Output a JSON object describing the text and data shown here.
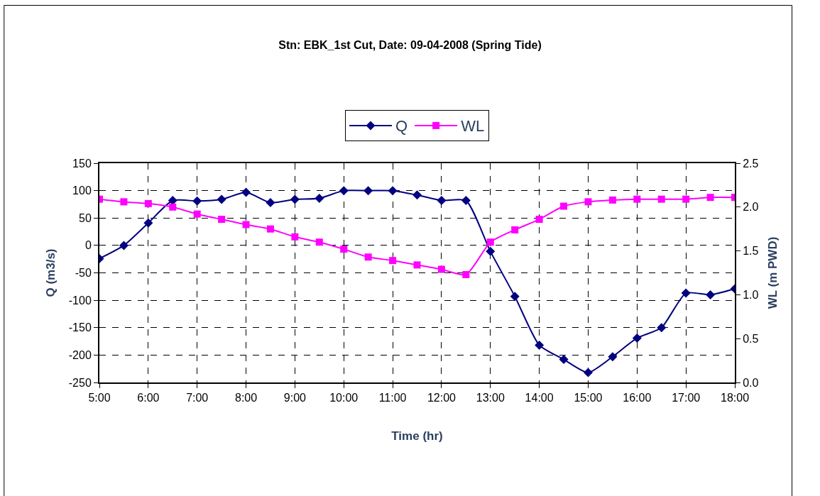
{
  "chart_data": {
    "type": "line",
    "title": "Stn: EBK_1st Cut, Date: 09-04-2008 (Spring Tide)",
    "xlabel": "Time (hr)",
    "ylabel": "Q (m3/s)",
    "y2label": "WL (m PWD)",
    "x": [
      5,
      5.5,
      6,
      6.5,
      7,
      7.5,
      8,
      8.5,
      9,
      9.5,
      10,
      10.5,
      11,
      11.5,
      12,
      12.5,
      13,
      13.5,
      14,
      14.5,
      15,
      15.5,
      16,
      16.5,
      17,
      17.5,
      18
    ],
    "series": [
      {
        "name": "Q",
        "color": "#000080",
        "marker": "diamond",
        "values": [
          -24,
          0,
          41,
          82,
          81,
          84,
          97,
          78,
          84,
          86,
          100,
          100,
          100,
          92,
          82,
          82,
          -11,
          -93,
          -182,
          -208,
          -232,
          -203,
          -169,
          -150,
          -87,
          -90,
          -79
        ]
      },
      {
        "name": "WL",
        "color": "#ff00ff",
        "marker": "square",
        "axis": "y2",
        "values": [
          2.09,
          2.06,
          2.04,
          2.0,
          1.92,
          1.86,
          1.8,
          1.75,
          1.66,
          1.6,
          1.52,
          1.43,
          1.39,
          1.34,
          1.29,
          1.23,
          1.6,
          1.74,
          1.86,
          2.01,
          2.06,
          2.08,
          2.09,
          2.09,
          2.09,
          2.11,
          2.11
        ]
      }
    ],
    "xlim": [
      5,
      18
    ],
    "xticks": [
      {
        "value": 5,
        "label": "5:00"
      },
      {
        "value": 6,
        "label": "6:00"
      },
      {
        "value": 7,
        "label": "7:00"
      },
      {
        "value": 8,
        "label": "8:00"
      },
      {
        "value": 9,
        "label": "9:00"
      },
      {
        "value": 10,
        "label": "10:00"
      },
      {
        "value": 11,
        "label": "11:00"
      },
      {
        "value": 12,
        "label": "12:00"
      },
      {
        "value": 13,
        "label": "13:00"
      },
      {
        "value": 14,
        "label": "14:00"
      },
      {
        "value": 15,
        "label": "15:00"
      },
      {
        "value": 16,
        "label": "16:00"
      },
      {
        "value": 17,
        "label": "17:00"
      },
      {
        "value": 18,
        "label": "18:00"
      }
    ],
    "ylim": [
      -250,
      150
    ],
    "yticks": [
      -250,
      -200,
      -150,
      -100,
      -50,
      0,
      50,
      100,
      150
    ],
    "y2lim": [
      0,
      2.5
    ],
    "y2ticks": [
      {
        "value": 0,
        "label": "0.0"
      },
      {
        "value": 0.5,
        "label": "0.5"
      },
      {
        "value": 1,
        "label": "1.0"
      },
      {
        "value": 1.5,
        "label": "1.5"
      },
      {
        "value": 2,
        "label": "2.0"
      },
      {
        "value": 2.5,
        "label": "2.5"
      }
    ],
    "grid": true,
    "legend": "top",
    "line_style": "solid"
  }
}
